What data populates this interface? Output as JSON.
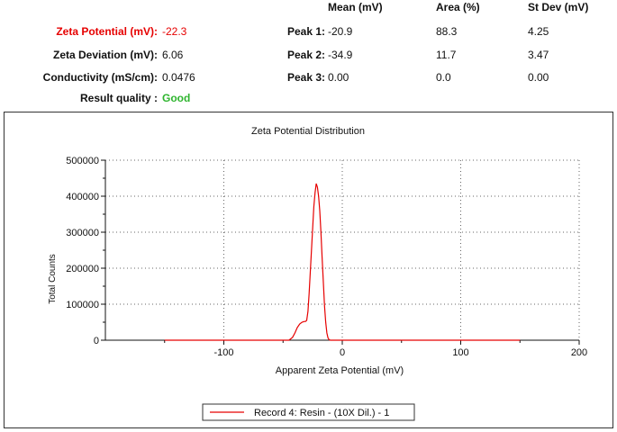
{
  "summary": {
    "zeta_potential": {
      "label": "Zeta Potential (mV):",
      "value": "-22.3"
    },
    "zeta_deviation": {
      "label": "Zeta Deviation (mV):",
      "value": "6.06"
    },
    "conductivity": {
      "label": "Conductivity (mS/cm):",
      "value": "0.0476"
    },
    "result_quality": {
      "label": "Result quality :",
      "value": "Good"
    }
  },
  "peaks_table": {
    "headers": [
      "Mean (mV)",
      "Area (%)",
      "St Dev (mV)"
    ],
    "rows": [
      {
        "label": "Peak 1:",
        "mean": "-20.9",
        "area": "88.3",
        "stdev": "4.25"
      },
      {
        "label": "Peak 2:",
        "mean": "-34.9",
        "area": "11.7",
        "stdev": "3.47"
      },
      {
        "label": "Peak 3:",
        "mean": "0.00",
        "area": "0.0",
        "stdev": "0.00"
      }
    ]
  },
  "colors": {
    "highlight": "#e60000",
    "good": "#2fb52f",
    "series": "#e60000"
  },
  "chart_data": {
    "type": "line",
    "title": "Zeta Potential Distribution",
    "xlabel": "Apparent Zeta Potential (mV)",
    "ylabel": "Total Counts",
    "xlim": [
      -200,
      200
    ],
    "ylim": [
      0,
      500000
    ],
    "xticks": [
      "-100",
      "0",
      "100",
      "200"
    ],
    "yticks": [
      "0",
      "100000",
      "200000",
      "300000",
      "400000",
      "500000"
    ],
    "grid": true,
    "legend_position": "bottom-center",
    "series": [
      {
        "name": "Record 4: Resin - (10X Dil.) - 1",
        "x": [
          -150,
          -45,
          -42,
          -40,
          -38,
          -36,
          -34,
          -32,
          -31,
          -30,
          -29,
          -28,
          -27,
          -26,
          -25,
          -24,
          -23,
          -22,
          -21,
          -20,
          -19,
          -18,
          -17,
          -16,
          -15,
          -14,
          -13,
          -12,
          -11,
          -10,
          150
        ],
        "y": [
          0,
          0,
          8000,
          20000,
          35000,
          45000,
          50000,
          52000,
          52000,
          55000,
          80000,
          130000,
          190000,
          250000,
          310000,
          370000,
          410000,
          435000,
          425000,
          400000,
          360000,
          300000,
          230000,
          160000,
          95000,
          50000,
          20000,
          6000,
          1000,
          0,
          0
        ]
      }
    ]
  }
}
